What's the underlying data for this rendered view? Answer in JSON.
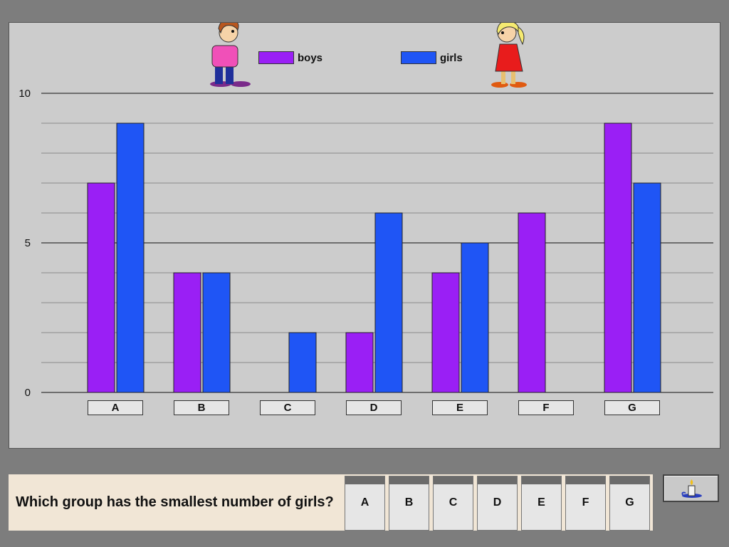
{
  "chart_data": {
    "type": "bar",
    "categories": [
      "A",
      "B",
      "C",
      "D",
      "E",
      "F",
      "G"
    ],
    "series": [
      {
        "name": "boys",
        "values": [
          7,
          4,
          0,
          2,
          4,
          6,
          9
        ],
        "color": "#9a1ff5"
      },
      {
        "name": "girls",
        "values": [
          9,
          4,
          2,
          6,
          5,
          0,
          7
        ],
        "color": "#1f55f5"
      }
    ],
    "ylim": [
      0,
      10
    ],
    "yticks": [
      "0",
      "5",
      "10"
    ],
    "grid": true,
    "legend_placement": "top"
  },
  "question": {
    "text": "Which group has the smallest number of girls?",
    "options": [
      "A",
      "B",
      "C",
      "D",
      "E",
      "F",
      "G"
    ]
  },
  "icons": {
    "hint": "candle-icon",
    "boy": "boy-figure",
    "girl": "girl-figure"
  }
}
